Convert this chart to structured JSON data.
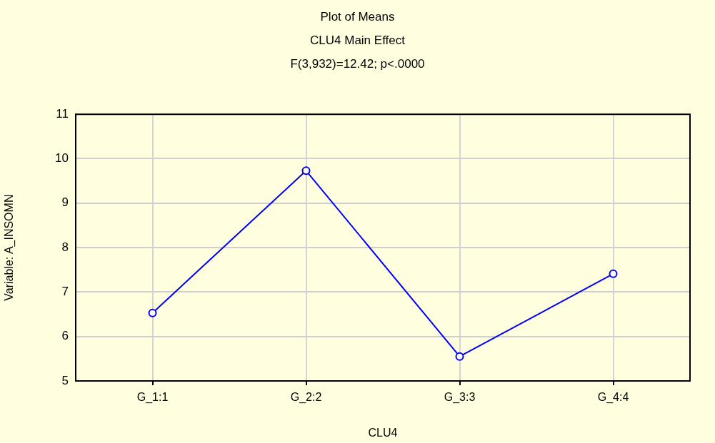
{
  "chart_data": {
    "type": "line",
    "title": "Plot of Means",
    "subtitle": "CLU4 Main Effect",
    "annotations": [
      "F(3,932)=12.42; p<.0000"
    ],
    "xlabel": "CLU4",
    "ylabel": "Variable: A_INSOMN",
    "categories": [
      "G_1:1",
      "G_2:2",
      "G_3:3",
      "G_4:4"
    ],
    "series": [
      {
        "color": "#0000ff",
        "values": [
          6.53,
          9.73,
          5.55,
          7.41
        ]
      }
    ],
    "ylim": [
      5,
      11
    ],
    "yticks": [
      5,
      6,
      7,
      8,
      9,
      10,
      11
    ],
    "grid": true,
    "legend": false,
    "marker": "circle",
    "line_style": "solid"
  }
}
